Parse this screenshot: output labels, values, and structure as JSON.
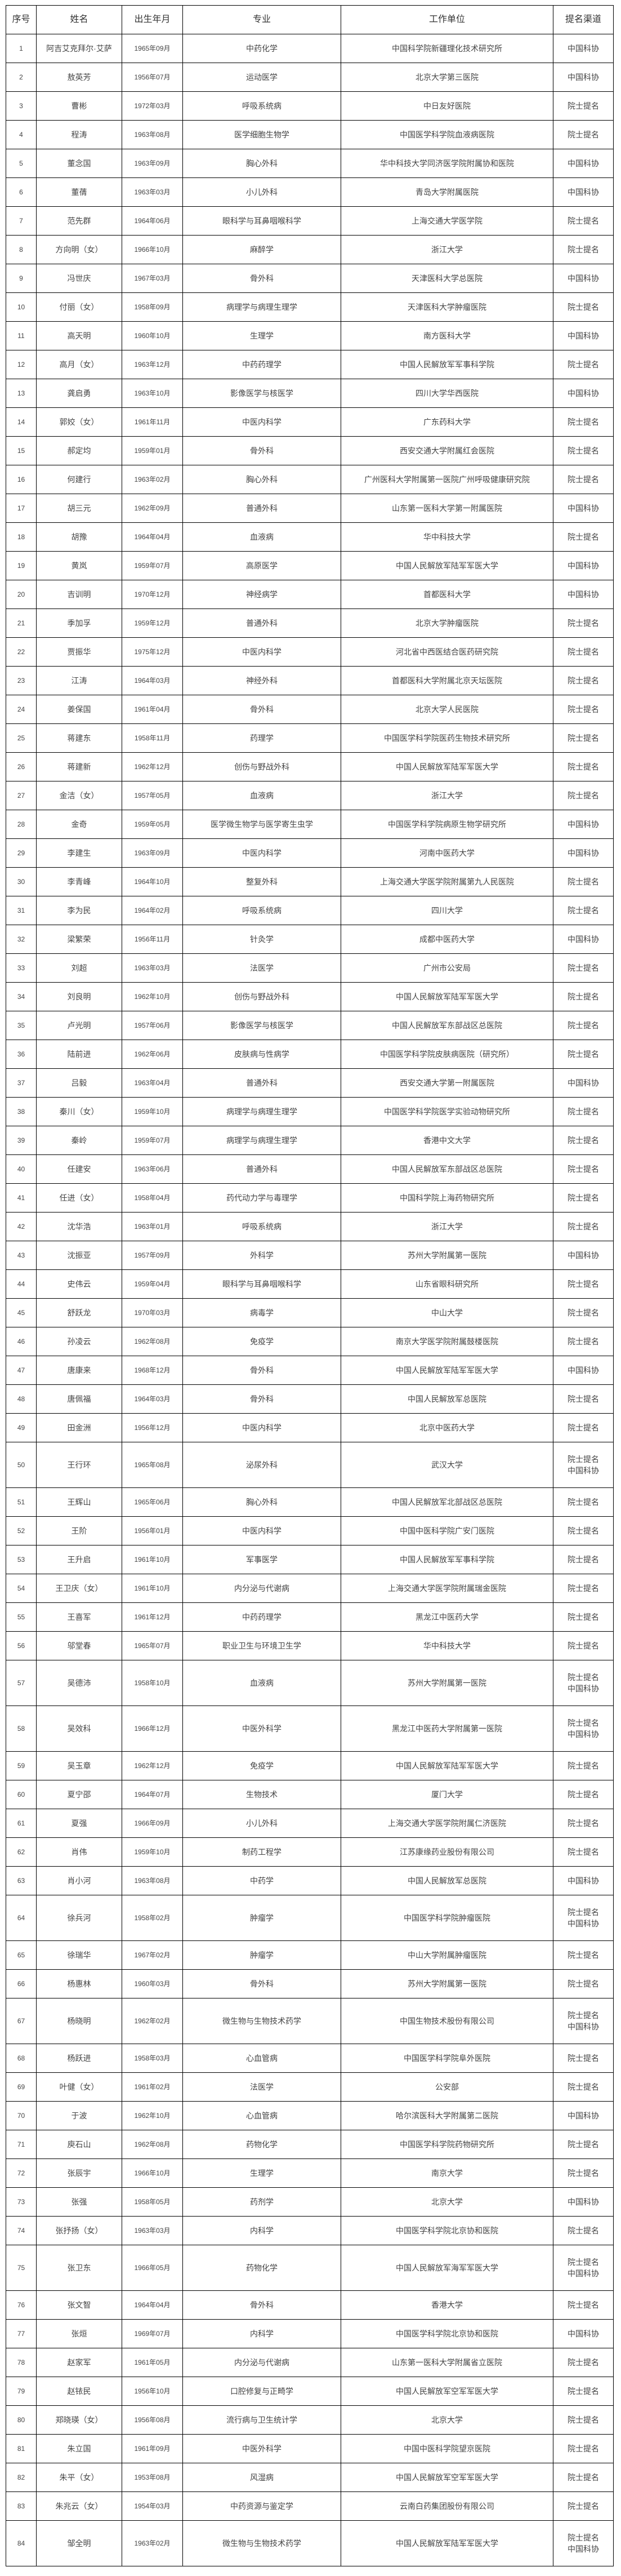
{
  "headers": [
    "序号",
    "姓名",
    "出生年月",
    "专业",
    "工作单位",
    "提名渠道"
  ],
  "rows": [
    [
      "1",
      "阿吉艾克拜尔·艾萨",
      "1965年09月",
      "中药化学",
      "中国科学院新疆理化技术研究所",
      "中国科协"
    ],
    [
      "2",
      "敖英芳",
      "1956年07月",
      "运动医学",
      "北京大学第三医院",
      "中国科协"
    ],
    [
      "3",
      "曹彬",
      "1972年03月",
      "呼吸系统病",
      "中日友好医院",
      "院士提名"
    ],
    [
      "4",
      "程涛",
      "1963年08月",
      "医学细胞生物学",
      "中国医学科学院血液病医院",
      "院士提名"
    ],
    [
      "5",
      "董念国",
      "1963年09月",
      "胸心外科",
      "华中科技大学同济医学院附属协和医院",
      "中国科协"
    ],
    [
      "6",
      "董蒨",
      "1963年03月",
      "小儿外科",
      "青岛大学附属医院",
      "中国科协"
    ],
    [
      "7",
      "范先群",
      "1964年06月",
      "眼科学与耳鼻咽喉科学",
      "上海交通大学医学院",
      "院士提名"
    ],
    [
      "8",
      "方向明（女）",
      "1966年10月",
      "麻醉学",
      "浙江大学",
      "院士提名"
    ],
    [
      "9",
      "冯世庆",
      "1967年03月",
      "骨外科",
      "天津医科大学总医院",
      "中国科协"
    ],
    [
      "10",
      "付丽（女）",
      "1958年09月",
      "病理学与病理生理学",
      "天津医科大学肿瘤医院",
      "院士提名"
    ],
    [
      "11",
      "高天明",
      "1960年10月",
      "生理学",
      "南方医科大学",
      "中国科协"
    ],
    [
      "12",
      "高月（女）",
      "1963年12月",
      "中药药理学",
      "中国人民解放军军事科学院",
      "院士提名"
    ],
    [
      "13",
      "龚启勇",
      "1963年10月",
      "影像医学与核医学",
      "四川大学华西医院",
      "中国科协"
    ],
    [
      "14",
      "郭姣（女）",
      "1961年11月",
      "中医内科学",
      "广东药科大学",
      "院士提名"
    ],
    [
      "15",
      "郝定均",
      "1959年01月",
      "骨外科",
      "西安交通大学附属红会医院",
      "院士提名"
    ],
    [
      "16",
      "何建行",
      "1963年02月",
      "胸心外科",
      "广州医科大学附属第一医院广州呼吸健康研究院",
      "院士提名"
    ],
    [
      "17",
      "胡三元",
      "1962年09月",
      "普通外科",
      "山东第一医科大学第一附属医院",
      "中国科协"
    ],
    [
      "18",
      "胡豫",
      "1964年04月",
      "血液病",
      "华中科技大学",
      "院士提名"
    ],
    [
      "19",
      "黄岚",
      "1959年07月",
      "高原医学",
      "中国人民解放军陆军军医大学",
      "中国科协"
    ],
    [
      "20",
      "吉训明",
      "1970年12月",
      "神经病学",
      "首都医科大学",
      "中国科协"
    ],
    [
      "21",
      "季加孚",
      "1959年12月",
      "普通外科",
      "北京大学肿瘤医院",
      "院士提名"
    ],
    [
      "22",
      "贾振华",
      "1975年12月",
      "中医内科学",
      "河北省中西医结合医药研究院",
      "院士提名"
    ],
    [
      "23",
      "江涛",
      "1964年03月",
      "神经外科",
      "首都医科大学附属北京天坛医院",
      "院士提名"
    ],
    [
      "24",
      "姜保国",
      "1961年04月",
      "骨外科",
      "北京大学人民医院",
      "院士提名"
    ],
    [
      "25",
      "蒋建东",
      "1958年11月",
      "药理学",
      "中国医学科学院医药生物技术研究所",
      "院士提名"
    ],
    [
      "26",
      "蒋建新",
      "1962年12月",
      "创伤与野战外科",
      "中国人民解放军陆军军医大学",
      "院士提名"
    ],
    [
      "27",
      "金洁（女）",
      "1957年05月",
      "血液病",
      "浙江大学",
      "院士提名"
    ],
    [
      "28",
      "金奇",
      "1959年05月",
      "医学微生物学与医学寄生虫学",
      "中国医学科学院病原生物学研究所",
      "中国科协"
    ],
    [
      "29",
      "李建生",
      "1963年09月",
      "中医内科学",
      "河南中医药大学",
      "中国科协"
    ],
    [
      "30",
      "李青峰",
      "1964年10月",
      "整复外科",
      "上海交通大学医学院附属第九人民医院",
      "院士提名"
    ],
    [
      "31",
      "李为民",
      "1964年02月",
      "呼吸系统病",
      "四川大学",
      "院士提名"
    ],
    [
      "32",
      "梁繁荣",
      "1956年11月",
      "针灸学",
      "成都中医药大学",
      "中国科协"
    ],
    [
      "33",
      "刘超",
      "1963年03月",
      "法医学",
      "广州市公安局",
      "院士提名"
    ],
    [
      "34",
      "刘良明",
      "1962年10月",
      "创伤与野战外科",
      "中国人民解放军陆军军医大学",
      "院士提名"
    ],
    [
      "35",
      "卢光明",
      "1957年06月",
      "影像医学与核医学",
      "中国人民解放军东部战区总医院",
      "院士提名"
    ],
    [
      "36",
      "陆前进",
      "1962年06月",
      "皮肤病与性病学",
      "中国医学科学院皮肤病医院（研究所）",
      "院士提名"
    ],
    [
      "37",
      "吕毅",
      "1963年04月",
      "普通外科",
      "西安交通大学第一附属医院",
      "中国科协"
    ],
    [
      "38",
      "秦川（女）",
      "1959年10月",
      "病理学与病理生理学",
      "中国医学科学院医学实验动物研究所",
      "院士提名"
    ],
    [
      "39",
      "秦岭",
      "1959年07月",
      "病理学与病理生理学",
      "香港中文大学",
      "院士提名"
    ],
    [
      "40",
      "任建安",
      "1963年06月",
      "普通外科",
      "中国人民解放军东部战区总医院",
      "院士提名"
    ],
    [
      "41",
      "任进（女）",
      "1958年04月",
      "药代动力学与毒理学",
      "中国科学院上海药物研究所",
      "院士提名"
    ],
    [
      "42",
      "沈华浩",
      "1963年01月",
      "呼吸系统病",
      "浙江大学",
      "院士提名"
    ],
    [
      "43",
      "沈振亚",
      "1957年09月",
      "外科学",
      "苏州大学附属第一医院",
      "中国科协"
    ],
    [
      "44",
      "史伟云",
      "1959年04月",
      "眼科学与耳鼻咽喉科学",
      "山东省眼科研究所",
      "院士提名"
    ],
    [
      "45",
      "舒跃龙",
      "1970年03月",
      "病毒学",
      "中山大学",
      "院士提名"
    ],
    [
      "46",
      "孙凌云",
      "1962年08月",
      "免疫学",
      "南京大学医学院附属鼓楼医院",
      "院士提名"
    ],
    [
      "47",
      "唐康来",
      "1968年12月",
      "骨外科",
      "中国人民解放军陆军军医大学",
      "中国科协"
    ],
    [
      "48",
      "唐佩福",
      "1964年03月",
      "骨外科",
      "中国人民解放军总医院",
      "院士提名"
    ],
    [
      "49",
      "田金洲",
      "1956年12月",
      "中医内科学",
      "北京中医药大学",
      "院士提名"
    ],
    [
      "50",
      "王行环",
      "1965年08月",
      "泌尿外科",
      "武汉大学",
      "院士提名\n中国科协"
    ],
    [
      "51",
      "王辉山",
      "1965年06月",
      "胸心外科",
      "中国人民解放军北部战区总医院",
      "院士提名"
    ],
    [
      "52",
      "王阶",
      "1956年01月",
      "中医内科学",
      "中国中医科学院广安门医院",
      "院士提名"
    ],
    [
      "53",
      "王升启",
      "1961年10月",
      "军事医学",
      "中国人民解放军军事科学院",
      "院士提名"
    ],
    [
      "54",
      "王卫庆（女）",
      "1961年10月",
      "内分泌与代谢病",
      "上海交通大学医学院附属瑞金医院",
      "院士提名"
    ],
    [
      "55",
      "王喜军",
      "1961年12月",
      "中药药理学",
      "黑龙江中医药大学",
      "院士提名"
    ],
    [
      "56",
      "邬堂春",
      "1965年07月",
      "职业卫生与环境卫生学",
      "华中科技大学",
      "院士提名"
    ],
    [
      "57",
      "吴德沛",
      "1958年10月",
      "血液病",
      "苏州大学附属第一医院",
      "院士提名\n中国科协"
    ],
    [
      "58",
      "吴效科",
      "1966年12月",
      "中医外科学",
      "黑龙江中医药大学附属第一医院",
      "院士提名\n中国科协"
    ],
    [
      "59",
      "吴玉章",
      "1962年12月",
      "免疫学",
      "中国人民解放军陆军军医大学",
      "院士提名"
    ],
    [
      "60",
      "夏宁邵",
      "1964年07月",
      "生物技术",
      "厦门大学",
      "院士提名"
    ],
    [
      "61",
      "夏强",
      "1966年09月",
      "小儿外科",
      "上海交通大学医学院附属仁济医院",
      "院士提名"
    ],
    [
      "62",
      "肖伟",
      "1959年10月",
      "制药工程学",
      "江苏康缘药业股份有限公司",
      "院士提名"
    ],
    [
      "63",
      "肖小河",
      "1963年08月",
      "中药学",
      "中国人民解放军总医院",
      "中国科协"
    ],
    [
      "64",
      "徐兵河",
      "1958年02月",
      "肿瘤学",
      "中国医学科学院肿瘤医院",
      "院士提名\n中国科协"
    ],
    [
      "65",
      "徐瑞华",
      "1967年02月",
      "肿瘤学",
      "中山大学附属肿瘤医院",
      "院士提名"
    ],
    [
      "66",
      "杨惠林",
      "1960年03月",
      "骨外科",
      "苏州大学附属第一医院",
      "院士提名"
    ],
    [
      "67",
      "杨晓明",
      "1962年02月",
      "微生物与生物技术药学",
      "中国生物技术股份有限公司",
      "院士提名\n中国科协"
    ],
    [
      "68",
      "杨跃进",
      "1958年03月",
      "心血管病",
      "中国医学科学院阜外医院",
      "院士提名"
    ],
    [
      "69",
      "叶健（女）",
      "1961年02月",
      "法医学",
      "公安部",
      "院士提名"
    ],
    [
      "70",
      "于波",
      "1962年10月",
      "心血管病",
      "哈尔滨医科大学附属第二医院",
      "中国科协"
    ],
    [
      "71",
      "庾石山",
      "1962年08月",
      "药物化学",
      "中国医学科学院药物研究所",
      "院士提名"
    ],
    [
      "72",
      "张辰宇",
      "1966年10月",
      "生理学",
      "南京大学",
      "院士提名"
    ],
    [
      "73",
      "张强",
      "1958年05月",
      "药剂学",
      "北京大学",
      "中国科协"
    ],
    [
      "74",
      "张抒扬（女）",
      "1963年03月",
      "内科学",
      "中国医学科学院北京协和医院",
      "院士提名"
    ],
    [
      "75",
      "张卫东",
      "1966年05月",
      "药物化学",
      "中国人民解放军海军军医大学",
      "院士提名\n中国科协"
    ],
    [
      "76",
      "张文智",
      "1964年04月",
      "骨外科",
      "香港大学",
      "院士提名"
    ],
    [
      "77",
      "张烜",
      "1969年07月",
      "内科学",
      "中国医学科学院北京协和医院",
      "中国科协"
    ],
    [
      "78",
      "赵家军",
      "1961年05月",
      "内分泌与代谢病",
      "山东第一医科大学附属省立医院",
      "院士提名"
    ],
    [
      "79",
      "赵铱民",
      "1956年10月",
      "口腔修复与正畸学",
      "中国人民解放军空军军医大学",
      "院士提名"
    ],
    [
      "80",
      "郑晓瑛（女）",
      "1956年08月",
      "流行病与卫生统计学",
      "北京大学",
      "院士提名"
    ],
    [
      "81",
      "朱立国",
      "1961年09月",
      "中医外科学",
      "中国中医科学院望京医院",
      "院士提名"
    ],
    [
      "82",
      "朱平（女）",
      "1953年08月",
      "风湿病",
      "中国人民解放军空军军医大学",
      "院士提名"
    ],
    [
      "83",
      "朱兆云（女）",
      "1954年03月",
      "中药资源与鉴定学",
      "云南白药集团股份有限公司",
      "院士提名"
    ],
    [
      "84",
      "邹全明",
      "1963年02月",
      "微生物与生物技术药学",
      "中国人民解放军陆军军医大学",
      "院士提名\n中国科协"
    ]
  ]
}
